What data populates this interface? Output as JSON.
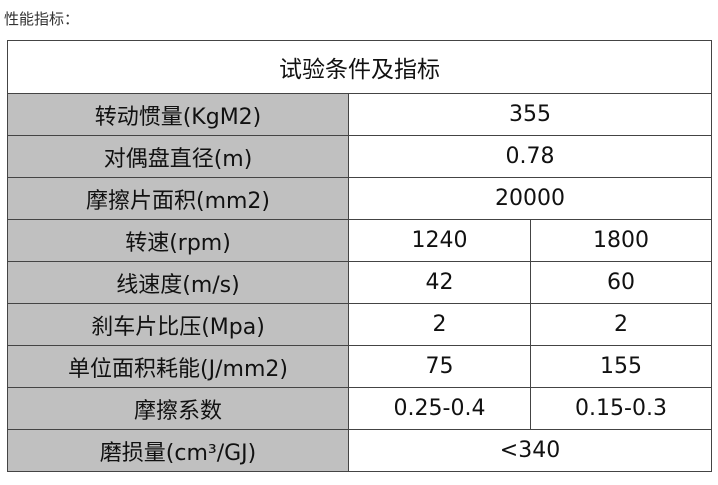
{
  "caption": "性能指标：",
  "table": {
    "title": "试验条件及指标",
    "rows": [
      {
        "label": "转动惯量(KgM2)",
        "values": [
          "355"
        ]
      },
      {
        "label": "对偶盘直径(m)",
        "values": [
          "0.78"
        ]
      },
      {
        "label": "摩擦片面积(mm2)",
        "values": [
          "20000"
        ]
      },
      {
        "label": "转速(rpm)",
        "values": [
          "1240",
          "1800"
        ]
      },
      {
        "label": "线速度(m/s)",
        "values": [
          "42",
          "60"
        ]
      },
      {
        "label": "刹车片比压(Mpa)",
        "values": [
          "2",
          "2"
        ]
      },
      {
        "label": "单位面积耗能(J/mm2)",
        "values": [
          "75",
          "155"
        ]
      },
      {
        "label": "摩擦系数",
        "values": [
          "0.25-0.4",
          "0.15-0.3"
        ]
      },
      {
        "label": "磨损量(cm³/GJ)",
        "values": [
          "<340"
        ]
      }
    ]
  },
  "colors": {
    "label_bg": "#c0c0c0",
    "border": "#444444"
  }
}
